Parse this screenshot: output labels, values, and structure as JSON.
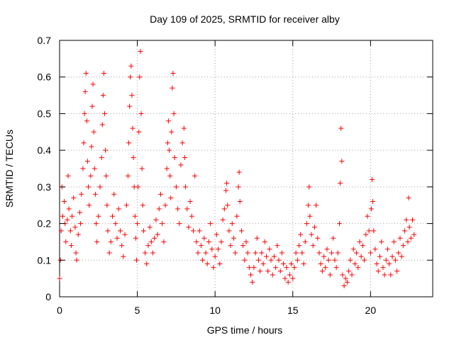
{
  "chart_data": {
    "type": "scatter",
    "title": "Day 109 of 2025, SRMTID for receiver alby",
    "xlabel": "GPS time / hours",
    "ylabel": "SRMTID / TECUs",
    "xlim": [
      0,
      24
    ],
    "ylim": [
      0,
      0.7
    ],
    "x_ticks": [
      "0",
      "5",
      "10",
      "15",
      "20"
    ],
    "y_ticks": [
      "0",
      "0.1",
      "0.2",
      "0.3",
      "0.4",
      "0.5",
      "0.6",
      "0.7"
    ],
    "grid": true,
    "marker": "+",
    "series": [
      {
        "name": "SRMTID",
        "color": "#ff0000",
        "points": [
          [
            0.0,
            0.05
          ],
          [
            0.05,
            0.1
          ],
          [
            0.1,
            0.18
          ],
          [
            0.15,
            0.3
          ],
          [
            0.2,
            0.22
          ],
          [
            0.3,
            0.26
          ],
          [
            0.35,
            0.2
          ],
          [
            0.4,
            0.15
          ],
          [
            0.5,
            0.21
          ],
          [
            0.55,
            0.33
          ],
          [
            0.6,
            0.24
          ],
          [
            0.7,
            0.18
          ],
          [
            0.75,
            0.14
          ],
          [
            0.8,
            0.22
          ],
          [
            0.9,
            0.27
          ],
          [
            1.0,
            0.19
          ],
          [
            1.05,
            0.12
          ],
          [
            1.1,
            0.1
          ],
          [
            1.2,
            0.17
          ],
          [
            1.3,
            0.23
          ],
          [
            1.35,
            0.2
          ],
          [
            1.4,
            0.28
          ],
          [
            1.5,
            0.35
          ],
          [
            1.55,
            0.42
          ],
          [
            1.6,
            0.5
          ],
          [
            1.65,
            0.56
          ],
          [
            1.7,
            0.61
          ],
          [
            1.75,
            0.48
          ],
          [
            1.8,
            0.37
          ],
          [
            1.85,
            0.3
          ],
          [
            1.9,
            0.25
          ],
          [
            2.0,
            0.33
          ],
          [
            2.05,
            0.41
          ],
          [
            2.1,
            0.52
          ],
          [
            2.15,
            0.58
          ],
          [
            2.2,
            0.45
          ],
          [
            2.25,
            0.35
          ],
          [
            2.3,
            0.28
          ],
          [
            2.35,
            0.2
          ],
          [
            2.4,
            0.15
          ],
          [
            2.5,
            0.22
          ],
          [
            2.6,
            0.3
          ],
          [
            2.7,
            0.38
          ],
          [
            2.75,
            0.47
          ],
          [
            2.8,
            0.55
          ],
          [
            2.85,
            0.61
          ],
          [
            2.9,
            0.5
          ],
          [
            2.95,
            0.4
          ],
          [
            3.0,
            0.33
          ],
          [
            3.05,
            0.25
          ],
          [
            3.1,
            0.18
          ],
          [
            3.2,
            0.12
          ],
          [
            3.3,
            0.15
          ],
          [
            3.4,
            0.22
          ],
          [
            3.5,
            0.28
          ],
          [
            3.6,
            0.2
          ],
          [
            3.7,
            0.16
          ],
          [
            3.8,
            0.24
          ],
          [
            3.9,
            0.18
          ],
          [
            4.0,
            0.14
          ],
          [
            4.1,
            0.11
          ],
          [
            4.2,
            0.17
          ],
          [
            4.3,
            0.25
          ],
          [
            4.4,
            0.33
          ],
          [
            4.45,
            0.42
          ],
          [
            4.5,
            0.52
          ],
          [
            4.55,
            0.6
          ],
          [
            4.6,
            0.63
          ],
          [
            4.65,
            0.55
          ],
          [
            4.7,
            0.46
          ],
          [
            4.75,
            0.38
          ],
          [
            4.8,
            0.3
          ],
          [
            4.85,
            0.22
          ],
          [
            4.9,
            0.16
          ],
          [
            4.95,
            0.1
          ],
          [
            5.0,
            0.2
          ],
          [
            5.05,
            0.3
          ],
          [
            5.1,
            0.45
          ],
          [
            5.15,
            0.6
          ],
          [
            5.2,
            0.67
          ],
          [
            5.25,
            0.5
          ],
          [
            5.3,
            0.35
          ],
          [
            5.35,
            0.25
          ],
          [
            5.4,
            0.18
          ],
          [
            5.5,
            0.12
          ],
          [
            5.6,
            0.09
          ],
          [
            5.7,
            0.14
          ],
          [
            5.8,
            0.19
          ],
          [
            5.9,
            0.15
          ],
          [
            6.0,
            0.12
          ],
          [
            6.1,
            0.16
          ],
          [
            6.2,
            0.21
          ],
          [
            6.3,
            0.17
          ],
          [
            6.4,
            0.24
          ],
          [
            6.5,
            0.28
          ],
          [
            6.6,
            0.2
          ],
          [
            6.7,
            0.15
          ],
          [
            6.8,
            0.25
          ],
          [
            6.9,
            0.35
          ],
          [
            6.95,
            0.42
          ],
          [
            7.0,
            0.48
          ],
          [
            7.05,
            0.4
          ],
          [
            7.1,
            0.33
          ],
          [
            7.15,
            0.27
          ],
          [
            7.2,
            0.45
          ],
          [
            7.25,
            0.57
          ],
          [
            7.3,
            0.61
          ],
          [
            7.35,
            0.5
          ],
          [
            7.4,
            0.38
          ],
          [
            7.5,
            0.3
          ],
          [
            7.6,
            0.24
          ],
          [
            7.7,
            0.2
          ],
          [
            7.8,
            0.36
          ],
          [
            7.9,
            0.42
          ],
          [
            8.0,
            0.46
          ],
          [
            8.05,
            0.38
          ],
          [
            8.1,
            0.3
          ],
          [
            8.2,
            0.24
          ],
          [
            8.3,
            0.19
          ],
          [
            8.4,
            0.26
          ],
          [
            8.5,
            0.22
          ],
          [
            8.6,
            0.18
          ],
          [
            8.7,
            0.33
          ],
          [
            8.8,
            0.15
          ],
          [
            8.9,
            0.12
          ],
          [
            9.0,
            0.18
          ],
          [
            9.1,
            0.14
          ],
          [
            9.2,
            0.1
          ],
          [
            9.3,
            0.16
          ],
          [
            9.4,
            0.12
          ],
          [
            9.5,
            0.09
          ],
          [
            9.6,
            0.15
          ],
          [
            9.7,
            0.2
          ],
          [
            9.8,
            0.13
          ],
          [
            9.9,
            0.08
          ],
          [
            10.0,
            0.11
          ],
          [
            10.1,
            0.17
          ],
          [
            10.2,
            0.13
          ],
          [
            10.3,
            0.09
          ],
          [
            10.4,
            0.15
          ],
          [
            10.5,
            0.21
          ],
          [
            10.6,
            0.24
          ],
          [
            10.7,
            0.29
          ],
          [
            10.75,
            0.31
          ],
          [
            10.8,
            0.25
          ],
          [
            10.9,
            0.18
          ],
          [
            11.0,
            0.14
          ],
          [
            11.1,
            0.2
          ],
          [
            11.2,
            0.16
          ],
          [
            11.3,
            0.12
          ],
          [
            11.4,
            0.22
          ],
          [
            11.5,
            0.3
          ],
          [
            11.55,
            0.34
          ],
          [
            11.6,
            0.26
          ],
          [
            11.7,
            0.18
          ],
          [
            11.8,
            0.14
          ],
          [
            11.9,
            0.1
          ],
          [
            12.0,
            0.15
          ],
          [
            12.1,
            0.12
          ],
          [
            12.2,
            0.08
          ],
          [
            12.3,
            0.06
          ],
          [
            12.4,
            0.04
          ],
          [
            12.5,
            0.08
          ],
          [
            12.6,
            0.12
          ],
          [
            12.7,
            0.16
          ],
          [
            12.8,
            0.1
          ],
          [
            12.9,
            0.07
          ],
          [
            13.0,
            0.12
          ],
          [
            13.1,
            0.09
          ],
          [
            13.2,
            0.15
          ],
          [
            13.3,
            0.11
          ],
          [
            13.4,
            0.07
          ],
          [
            13.5,
            0.13
          ],
          [
            13.6,
            0.1
          ],
          [
            13.7,
            0.06
          ],
          [
            13.8,
            0.11
          ],
          [
            13.9,
            0.08
          ],
          [
            14.0,
            0.14
          ],
          [
            14.1,
            0.1
          ],
          [
            14.2,
            0.07
          ],
          [
            14.3,
            0.12
          ],
          [
            14.4,
            0.09
          ],
          [
            14.5,
            0.05
          ],
          [
            14.6,
            0.08
          ],
          [
            14.7,
            0.04
          ],
          [
            14.8,
            0.06
          ],
          [
            14.9,
            0.09
          ],
          [
            15.0,
            0.05
          ],
          [
            15.1,
            0.08
          ],
          [
            15.2,
            0.12
          ],
          [
            15.3,
            0.1
          ],
          [
            15.4,
            0.14
          ],
          [
            15.5,
            0.17
          ],
          [
            15.6,
            0.12
          ],
          [
            15.7,
            0.09
          ],
          [
            15.8,
            0.15
          ],
          [
            15.9,
            0.2
          ],
          [
            16.0,
            0.25
          ],
          [
            16.05,
            0.3
          ],
          [
            16.1,
            0.22
          ],
          [
            16.2,
            0.17
          ],
          [
            16.3,
            0.14
          ],
          [
            16.4,
            0.19
          ],
          [
            16.5,
            0.25
          ],
          [
            16.6,
            0.16
          ],
          [
            16.7,
            0.12
          ],
          [
            16.8,
            0.09
          ],
          [
            16.9,
            0.07
          ],
          [
            17.0,
            0.11
          ],
          [
            17.1,
            0.08
          ],
          [
            17.2,
            0.13
          ],
          [
            17.3,
            0.1
          ],
          [
            17.4,
            0.06
          ],
          [
            17.5,
            0.12
          ],
          [
            17.6,
            0.16
          ],
          [
            17.7,
            0.1
          ],
          [
            17.8,
            0.08
          ],
          [
            17.9,
            0.12
          ],
          [
            18.0,
            0.2
          ],
          [
            18.05,
            0.31
          ],
          [
            18.1,
            0.46
          ],
          [
            18.15,
            0.37
          ],
          [
            18.2,
            0.06
          ],
          [
            18.3,
            0.03
          ],
          [
            18.4,
            0.05
          ],
          [
            18.5,
            0.04
          ],
          [
            18.6,
            0.07
          ],
          [
            18.7,
            0.1
          ],
          [
            18.8,
            0.06
          ],
          [
            18.9,
            0.13
          ],
          [
            19.0,
            0.09
          ],
          [
            19.1,
            0.12
          ],
          [
            19.2,
            0.08
          ],
          [
            19.3,
            0.15
          ],
          [
            19.4,
            0.11
          ],
          [
            19.5,
            0.14
          ],
          [
            19.6,
            0.1
          ],
          [
            19.7,
            0.17
          ],
          [
            19.8,
            0.22
          ],
          [
            19.9,
            0.18
          ],
          [
            20.0,
            0.12
          ],
          [
            20.05,
            0.24
          ],
          [
            20.1,
            0.32
          ],
          [
            20.15,
            0.26
          ],
          [
            20.2,
            0.18
          ],
          [
            20.3,
            0.13
          ],
          [
            20.4,
            0.09
          ],
          [
            20.5,
            0.07
          ],
          [
            20.6,
            0.11
          ],
          [
            20.7,
            0.15
          ],
          [
            20.8,
            0.08
          ],
          [
            20.9,
            0.06
          ],
          [
            21.0,
            0.1
          ],
          [
            21.1,
            0.13
          ],
          [
            21.2,
            0.09
          ],
          [
            21.3,
            0.06
          ],
          [
            21.4,
            0.11
          ],
          [
            21.5,
            0.15
          ],
          [
            21.6,
            0.1
          ],
          [
            21.7,
            0.07
          ],
          [
            21.8,
            0.12
          ],
          [
            21.9,
            0.16
          ],
          [
            22.0,
            0.11
          ],
          [
            22.1,
            0.14
          ],
          [
            22.2,
            0.18
          ],
          [
            22.3,
            0.21
          ],
          [
            22.4,
            0.15
          ],
          [
            22.45,
            0.27
          ],
          [
            22.5,
            0.19
          ],
          [
            22.6,
            0.16
          ],
          [
            22.7,
            0.21
          ],
          [
            22.8,
            0.17
          ]
        ]
      }
    ]
  }
}
